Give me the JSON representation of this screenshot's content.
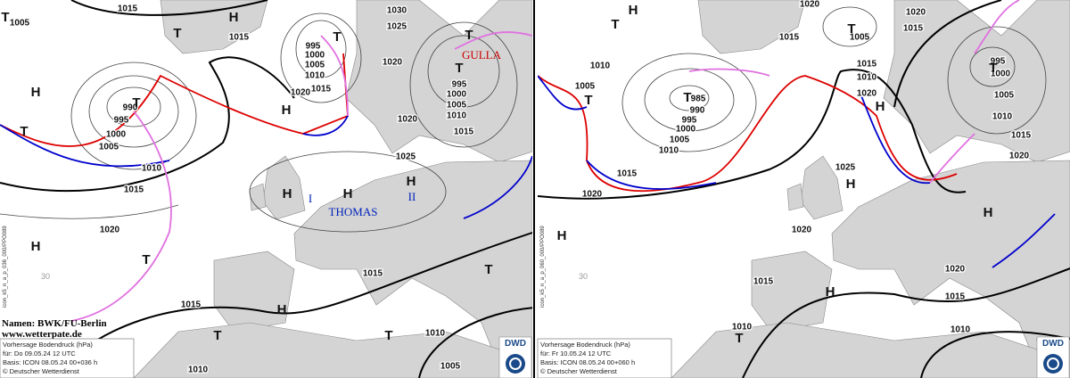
{
  "panels": [
    {
      "isobar_labels": [
        1005,
        1015,
        1015,
        1030,
        1025,
        1020,
        995,
        1000,
        1005,
        1010,
        1015,
        1020,
        990,
        995,
        1000,
        1005,
        1010,
        1015,
        1020,
        1025,
        995,
        1000,
        1005,
        1010,
        1015,
        1020,
        1015,
        1015,
        1010,
        1010,
        1005
      ],
      "centers": [
        "T",
        "H",
        "T",
        "T",
        "T",
        "T",
        "H",
        "T",
        "H",
        "T",
        "H",
        "H",
        "H",
        "H",
        "T",
        "H",
        "T",
        "T",
        "T"
      ],
      "system_names": [
        "GULLA",
        "THOMAS",
        "I",
        "II"
      ],
      "grid_label": "30",
      "run_code": "icon_k5_n_a_p_036_000/PPO089",
      "credits": [
        "Namen: BWK/FU-Berlin",
        "www.wetterpate.de"
      ],
      "info": [
        "Vorhersage Bodendruck (hPa)",
        "für:  Do  09.05.24  12 UTC",
        "Basis: ICON  08.05.24 00+036 h",
        "© Deutscher Wetterdienst"
      ],
      "logo": "DWD"
    },
    {
      "isobar_labels": [
        1005,
        1010,
        1015,
        1020,
        1015,
        1020,
        1005,
        1020,
        1015,
        1010,
        1015,
        1020,
        985,
        990,
        995,
        1000,
        1005,
        1010,
        1025,
        995,
        1000,
        1005,
        1010,
        1015,
        1020,
        1020,
        1015,
        1020,
        1015,
        1010,
        1010
      ],
      "centers": [
        "H",
        "T",
        "T",
        "T",
        "T",
        "H",
        "H",
        "H",
        "H",
        "H",
        "T",
        "T",
        "T"
      ],
      "grid_label": "30",
      "run_code": "icon_k5_n_a_p_060_000/PPO089",
      "info": [
        "Vorhersage Bodendruck (hPa)",
        "für:  Fr  10.05.24  12 UTC",
        "Basis: ICON  08.05.24 00+060 h",
        "© Deutscher Wetterdienst"
      ],
      "logo": "DWD"
    }
  ]
}
